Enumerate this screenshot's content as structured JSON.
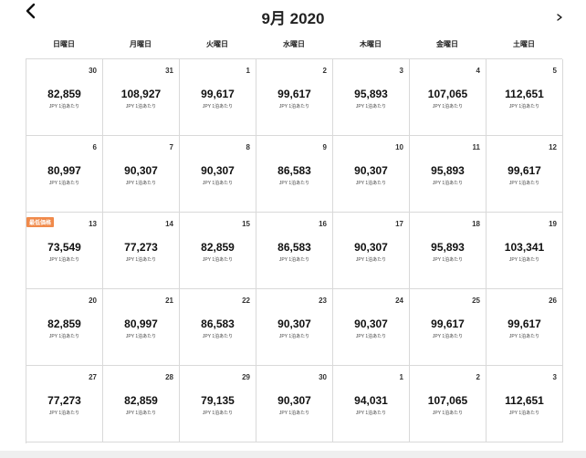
{
  "header": {
    "title": "9月 2020",
    "prev_icon": "chevron-left-icon",
    "next_icon": "chevron-right-icon"
  },
  "weekdays": [
    "日曜日",
    "月曜日",
    "火曜日",
    "水曜日",
    "木曜日",
    "金曜日",
    "土曜日"
  ],
  "price_note": "JPY 1泊あたり",
  "badge_label": "最低価格",
  "colors": {
    "badge": "#f08a4b",
    "grid_line": "#d9d9d9"
  },
  "days": [
    {
      "day": "30",
      "price": "82,859"
    },
    {
      "day": "31",
      "price": "108,927"
    },
    {
      "day": "1",
      "price": "99,617"
    },
    {
      "day": "2",
      "price": "99,617"
    },
    {
      "day": "3",
      "price": "95,893"
    },
    {
      "day": "4",
      "price": "107,065"
    },
    {
      "day": "5",
      "price": "112,651"
    },
    {
      "day": "6",
      "price": "80,997"
    },
    {
      "day": "7",
      "price": "90,307"
    },
    {
      "day": "8",
      "price": "90,307"
    },
    {
      "day": "9",
      "price": "86,583"
    },
    {
      "day": "10",
      "price": "90,307"
    },
    {
      "day": "11",
      "price": "95,893"
    },
    {
      "day": "12",
      "price": "99,617"
    },
    {
      "day": "13",
      "price": "73,549",
      "lowest": true
    },
    {
      "day": "14",
      "price": "77,273"
    },
    {
      "day": "15",
      "price": "82,859"
    },
    {
      "day": "16",
      "price": "86,583"
    },
    {
      "day": "17",
      "price": "90,307"
    },
    {
      "day": "18",
      "price": "95,893"
    },
    {
      "day": "19",
      "price": "103,341"
    },
    {
      "day": "20",
      "price": "82,859"
    },
    {
      "day": "21",
      "price": "80,997"
    },
    {
      "day": "22",
      "price": "86,583"
    },
    {
      "day": "23",
      "price": "90,307"
    },
    {
      "day": "24",
      "price": "90,307"
    },
    {
      "day": "25",
      "price": "99,617"
    },
    {
      "day": "26",
      "price": "99,617"
    },
    {
      "day": "27",
      "price": "77,273"
    },
    {
      "day": "28",
      "price": "82,859"
    },
    {
      "day": "29",
      "price": "79,135"
    },
    {
      "day": "30",
      "price": "90,307"
    },
    {
      "day": "1",
      "price": "94,031"
    },
    {
      "day": "2",
      "price": "107,065"
    },
    {
      "day": "3",
      "price": "112,651"
    }
  ]
}
